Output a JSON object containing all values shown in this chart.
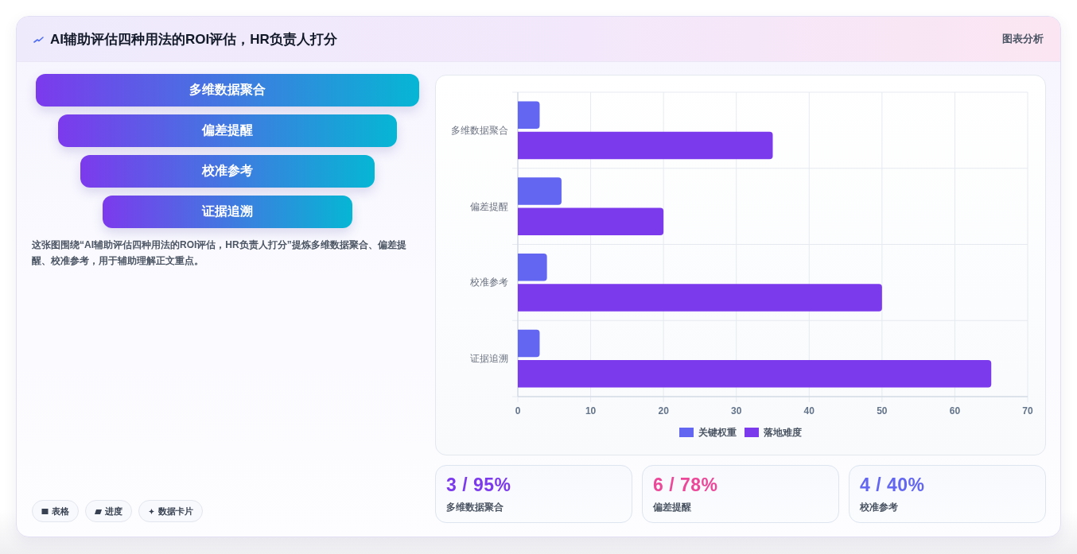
{
  "chart_data": [
    {
      "type": "other",
      "title": "AI辅助评估四种用法的ROI评估，HR负责人打分",
      "categories": [
        "多维数据聚合",
        "偏差提醒",
        "校准参考",
        "证据追溯"
      ],
      "annotations": [
        "图表分析",
        "这张图围绕“AI辅助评估四种用法的ROI评估，HR负责人打分”提炼多维数据聚合、偏差提醒、校准参考，用于辅助理解正文重点。",
        "表格",
        "进度",
        "数据卡片"
      ]
    },
    {
      "type": "bar",
      "orientation": "horizontal",
      "categories": [
        "多维数据聚合",
        "偏差提醒",
        "校准参考",
        "证据追溯"
      ],
      "series": [
        {
          "name": "关键权重",
          "color": "#6366f1",
          "values": [
            3,
            6,
            4,
            3
          ]
        },
        {
          "name": "落地难度",
          "color": "#7c3aed",
          "values": [
            35,
            20,
            50,
            65
          ]
        }
      ],
      "xlim": [
        0,
        70
      ],
      "xticks": [
        0,
        10,
        20,
        30,
        40,
        50,
        60,
        70
      ],
      "grid": true,
      "legend": "bottom"
    },
    {
      "type": "other",
      "categories": [
        "多维数据聚合",
        "偏差提醒",
        "校准参考"
      ],
      "annotations": [
        "3 / 95%",
        "6 / 78%",
        "4 / 40%"
      ]
    }
  ]
}
